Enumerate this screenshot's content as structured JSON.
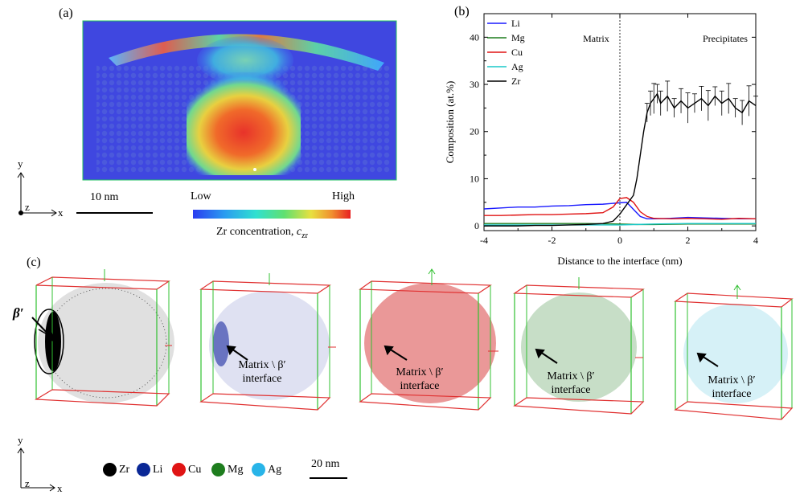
{
  "panel_a": {
    "label": "(a)",
    "scale_bar": "10 nm",
    "colorbar_low": "Low",
    "colorbar_high": "High",
    "colorbar_caption": "Zr concentration, ",
    "colorbar_caption_var": "c",
    "colorbar_caption_sub": "zr",
    "axis_y": "y",
    "axis_z": "z",
    "axis_x": "x"
  },
  "panel_b": {
    "label": "(b)"
  },
  "panel_c": {
    "label": "(c)",
    "beta_label": "β′",
    "interface_line1": "Matrix \\ β′",
    "interface_line2": "interface",
    "scale_bar": "20 nm",
    "axis_y": "y",
    "axis_z": "z",
    "axis_x": "x",
    "elements": [
      {
        "name": "Zr",
        "color": "#000000"
      },
      {
        "name": "Li",
        "color": "#0a2896"
      },
      {
        "name": "Cu",
        "color": "#e01414"
      },
      {
        "name": "Mg",
        "color": "#1e7d1e"
      },
      {
        "name": "Ag",
        "color": "#28b4e8"
      }
    ]
  },
  "chart_data": {
    "type": "line",
    "title": "",
    "xlabel": "Distance to the interface (nm)",
    "ylabel": "Composition (at.%)",
    "xlim": [
      -4,
      4
    ],
    "ylim": [
      -1,
      45
    ],
    "xticks": [
      -4,
      -2,
      0,
      2,
      4
    ],
    "yticks": [
      0,
      10,
      20,
      30,
      40
    ],
    "annotations": [
      "Matrix",
      "Precipitates"
    ],
    "legend_position": "top-left",
    "series": [
      {
        "name": "Li",
        "color": "#1a1aff",
        "x": [
          -4,
          -3.5,
          -3,
          -2.5,
          -2,
          -1.5,
          -1,
          -0.5,
          0,
          0.2,
          0.4,
          0.6,
          0.8,
          1,
          1.5,
          2,
          2.5,
          3,
          3.5,
          4
        ],
        "y": [
          3.6,
          3.8,
          4.0,
          4.0,
          4.2,
          4.3,
          4.5,
          4.6,
          4.9,
          5.0,
          3.5,
          2.0,
          1.5,
          1.5,
          1.6,
          1.8,
          1.7,
          1.6,
          1.5,
          1.5
        ]
      },
      {
        "name": "Mg",
        "color": "#1e7d1e",
        "x": [
          -4,
          -3,
          -2,
          -1,
          0,
          0.5,
          1,
          2,
          3,
          4
        ],
        "y": [
          0.5,
          0.5,
          0.5,
          0.5,
          0.4,
          0.3,
          0.3,
          0.4,
          0.4,
          0.4
        ]
      },
      {
        "name": "Cu",
        "color": "#e01414",
        "x": [
          -4,
          -3.5,
          -3,
          -2.5,
          -2,
          -1.5,
          -1,
          -0.5,
          -0.2,
          0,
          0.2,
          0.4,
          0.6,
          0.8,
          1,
          1.5,
          2,
          2.5,
          3,
          3.5,
          4
        ],
        "y": [
          2.2,
          2.2,
          2.3,
          2.4,
          2.4,
          2.5,
          2.6,
          2.8,
          4.0,
          5.8,
          6.0,
          5.0,
          3.0,
          2.0,
          1.6,
          1.5,
          1.6,
          1.5,
          1.4,
          1.6,
          1.5
        ]
      },
      {
        "name": "Ag",
        "color": "#19c8c8",
        "x": [
          -4,
          -3,
          -2,
          -1,
          0,
          0.5,
          1,
          2,
          3,
          4
        ],
        "y": [
          0.2,
          0.2,
          0.2,
          0.2,
          0.2,
          0.3,
          0.4,
          0.5,
          0.5,
          0.5
        ]
      },
      {
        "name": "Zr",
        "color": "#000000",
        "x": [
          -4,
          -3.5,
          -3,
          -2.5,
          -2,
          -1.5,
          -1,
          -0.5,
          -0.2,
          0,
          0.2,
          0.4,
          0.5,
          0.6,
          0.7,
          0.8,
          0.9,
          1.0,
          1.1,
          1.2,
          1.4,
          1.6,
          1.8,
          2.0,
          2.2,
          2.4,
          2.6,
          2.8,
          3.0,
          3.2,
          3.4,
          3.6,
          3.8,
          4.0
        ],
        "y": [
          0,
          0,
          0,
          0.1,
          0.1,
          0.2,
          0.3,
          0.5,
          1.0,
          2.5,
          4.5,
          6.5,
          10,
          15,
          20,
          24,
          26,
          27,
          28,
          26,
          27.5,
          25,
          26.5,
          25,
          26,
          27,
          25.5,
          27.5,
          26,
          27,
          25,
          24,
          26.5,
          25.5
        ]
      }
    ]
  }
}
